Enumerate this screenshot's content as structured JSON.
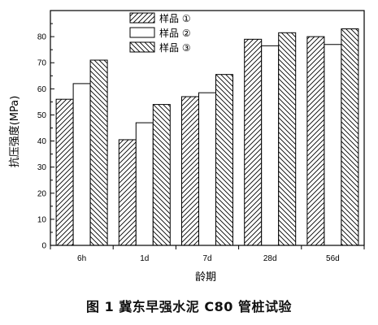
{
  "caption": "图 1 冀东早强水泥 C80 管桩试验",
  "colors": {
    "axis": "#000000",
    "bar_fill": "#ffffff",
    "hatch": "#000000"
  },
  "chart_data": {
    "type": "bar",
    "title": "",
    "xlabel": "龄期",
    "ylabel": "抗压强度(MPa)",
    "ylim": [
      0,
      90
    ],
    "yticks": [
      0,
      10,
      20,
      30,
      40,
      50,
      60,
      70,
      80
    ],
    "grid": false,
    "legend_position": "top-center",
    "categories": [
      "6h",
      "1d",
      "7d",
      "28d",
      "56d"
    ],
    "series": [
      {
        "name": "样品 ①",
        "pattern": "forward-hatch",
        "values": [
          56,
          40.5,
          57,
          79,
          80
        ]
      },
      {
        "name": "样品 ②",
        "pattern": "plain",
        "values": [
          62,
          47,
          58.5,
          76.5,
          77
        ]
      },
      {
        "name": "样品 ③",
        "pattern": "back-hatch",
        "values": [
          71,
          54,
          65.5,
          81.5,
          83
        ]
      }
    ]
  }
}
